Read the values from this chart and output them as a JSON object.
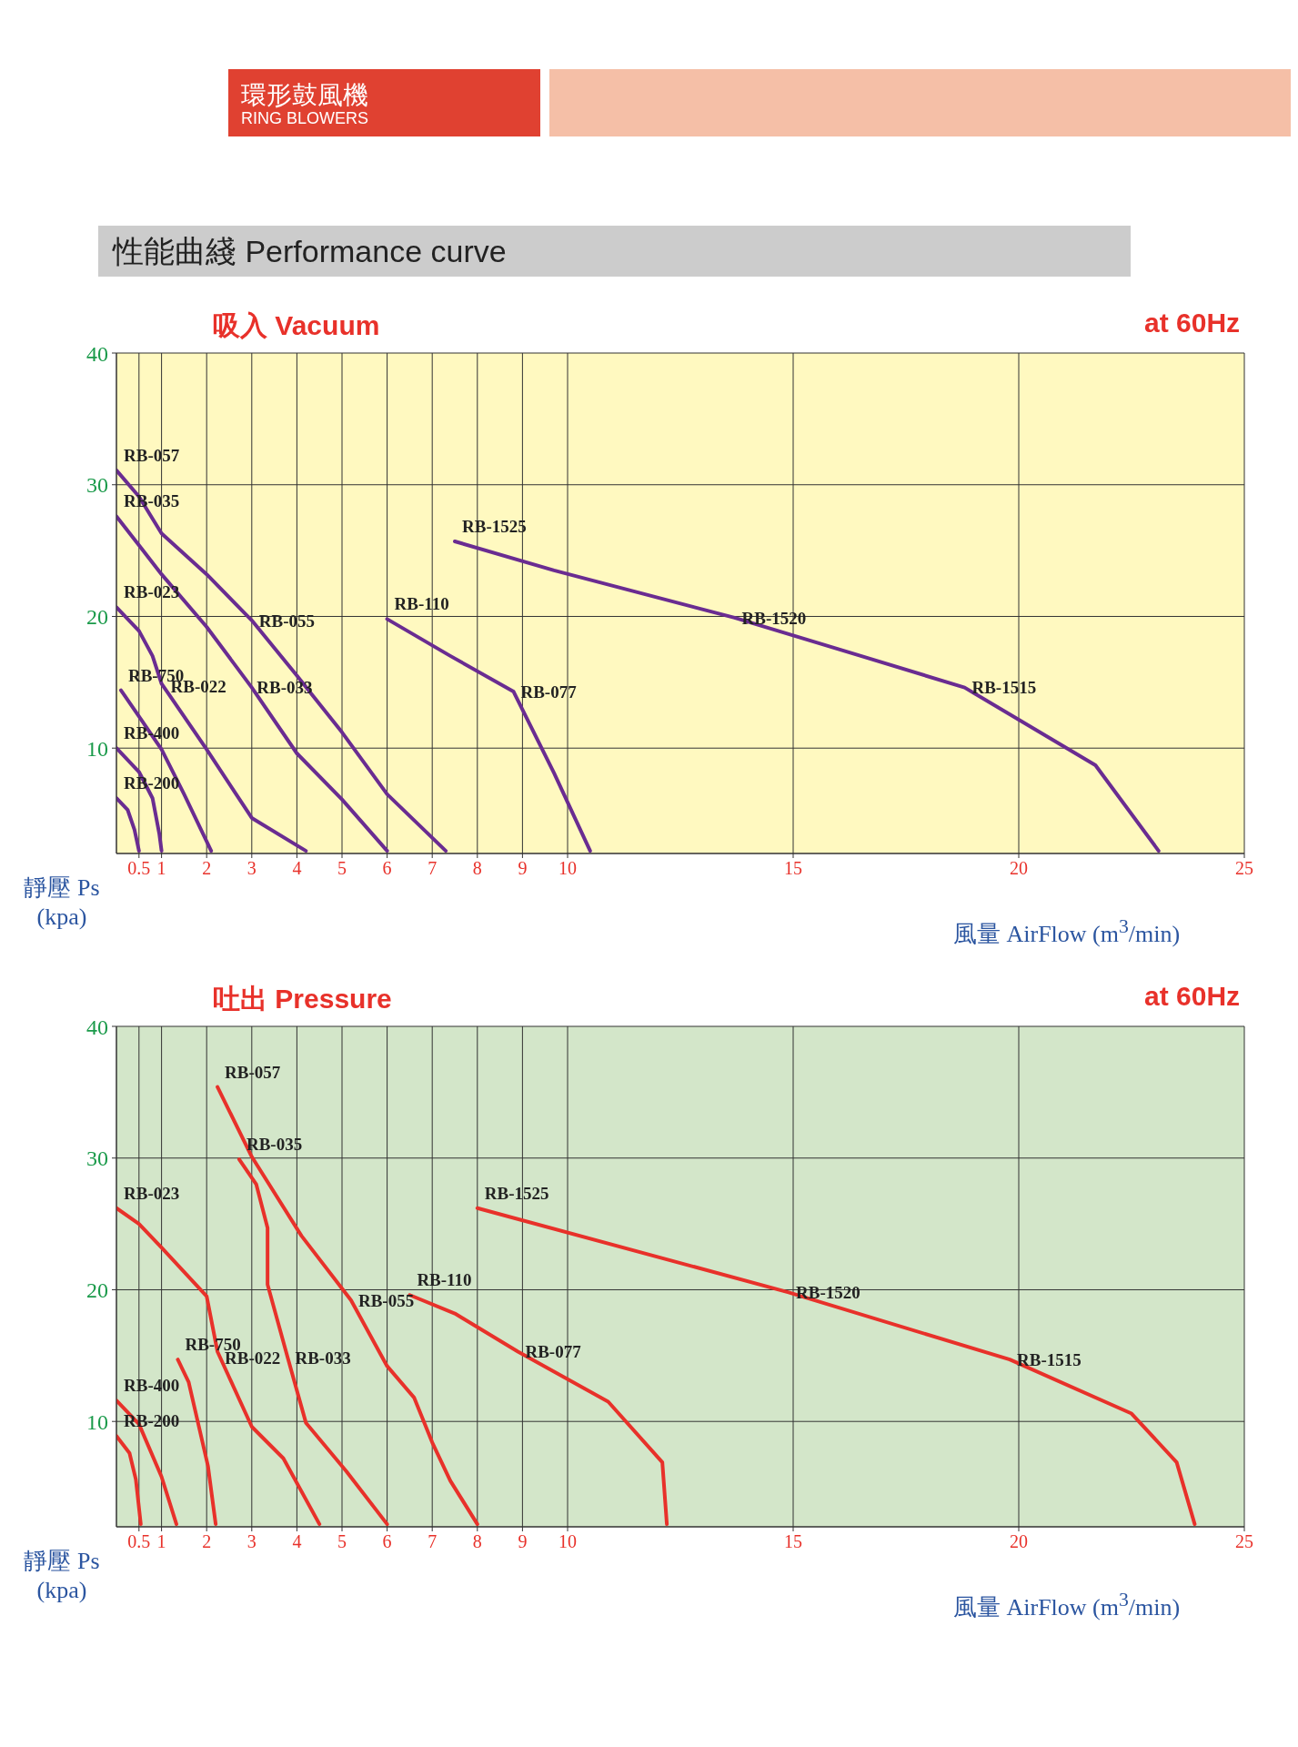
{
  "chart_data": [
    {
      "type": "line",
      "title": "吸入 Vacuum",
      "xlabel": "風量 AirFlow (m$^{3}$/min)",
      "ylabel": "靜壓 Ps (kpa)",
      "xlim": [
        0,
        25
      ],
      "xticks": [
        0.5,
        1,
        2,
        3,
        4,
        5,
        6,
        7,
        8,
        9,
        10,
        15,
        20,
        25
      ],
      "ylim": [
        2,
        40
      ],
      "yticks": [
        10,
        20,
        30,
        40
      ],
      "grid": true,
      "annotations": [
        "環形鼓風機",
        "RING BLOWERS",
        "性能曲綫 Performance curve",
        "at 60Hz",
        {
          "text": "RB-055",
          "x": 3,
          "y": 19.7
        },
        {
          "text": "RB-033",
          "x": 2.95,
          "y": 14.6
        },
        {
          "text": "RB-022",
          "x": 1.04,
          "y": 14.7
        },
        {
          "text": "RB-077",
          "x": 8.8,
          "y": 14.3
        },
        {
          "text": "RB-1520",
          "x": 13.7,
          "y": 19.9
        },
        {
          "text": "RB-1515",
          "x": 18.8,
          "y": 14.6
        }
      ],
      "series": [
        {
          "name": "RB-057",
          "color": "#6a2c91",
          "x": [
            0,
            0.5,
            1,
            2,
            3,
            4,
            5,
            6,
            7.3
          ],
          "values": [
            31.1,
            29.1,
            26.3,
            23.2,
            19.7,
            15.5,
            11.2,
            6.5,
            2.2
          ]
        },
        {
          "name": "RB-035",
          "color": "#6a2c91",
          "x": [
            0,
            0.5,
            1,
            2,
            3,
            4,
            5,
            6
          ],
          "values": [
            27.6,
            25.4,
            23.2,
            19.2,
            14.6,
            9.6,
            6.1,
            2.2
          ]
        },
        {
          "name": "RB-023",
          "color": "#6a2c91",
          "x": [
            0,
            0.5,
            0.8,
            1,
            2,
            3,
            4.2
          ],
          "values": [
            20.7,
            18.9,
            17,
            14.9,
            9.9,
            4.7,
            2.2
          ]
        },
        {
          "name": "RB-750",
          "color": "#6a2c91",
          "x": [
            0.1,
            0.5,
            1,
            1.5,
            2.1
          ],
          "values": [
            14.4,
            12.4,
            9.9,
            6.5,
            2.2
          ]
        },
        {
          "name": "RB-400",
          "color": "#6a2c91",
          "x": [
            0,
            0.5,
            0.8,
            0.95,
            1
          ],
          "values": [
            10,
            8.2,
            6.2,
            3.5,
            2.2
          ]
        },
        {
          "name": "RB-200",
          "color": "#6a2c91",
          "x": [
            0,
            0.25,
            0.4,
            0.5
          ],
          "values": [
            6.2,
            5.3,
            3.8,
            2.2
          ]
        },
        {
          "name": "RB-110",
          "color": "#6a2c91",
          "x": [
            6,
            7.4,
            8.8,
            9.7,
            10.5
          ],
          "values": [
            19.8,
            17,
            14.3,
            8.1,
            2.2
          ]
        },
        {
          "name": "RB-1525",
          "color": "#6a2c91",
          "x": [
            7.5,
            9.7,
            13.7,
            16.5,
            18.8,
            21.7,
            23.1
          ],
          "values": [
            25.7,
            23.5,
            19.9,
            17,
            14.6,
            8.7,
            2.2
          ]
        }
      ]
    },
    {
      "type": "line",
      "title": "吐出 Pressure",
      "xlabel": "風量 AirFlow (m$^{3}$/min)",
      "ylabel": "靜壓 Ps (kpa)",
      "xlim": [
        0,
        25
      ],
      "xticks": [
        0.5,
        1,
        2,
        3,
        4,
        5,
        6,
        7,
        8,
        9,
        10,
        15,
        20,
        25
      ],
      "ylim": [
        2,
        40
      ],
      "yticks": [
        10,
        20,
        30,
        40
      ],
      "grid": true,
      "annotations": [
        "at 60Hz",
        {
          "text": "RB-055",
          "x": 5.2,
          "y": 19.2
        },
        {
          "text": "RB-022",
          "x": 2.24,
          "y": 14.8
        },
        {
          "text": "RB-033",
          "x": 3.8,
          "y": 14.8
        },
        {
          "text": "RB-077",
          "x": 8.9,
          "y": 15.3
        },
        {
          "text": "RB-1520",
          "x": 14.9,
          "y": 19.8
        },
        {
          "text": "RB-1515",
          "x": 19.8,
          "y": 14.7
        }
      ],
      "series": [
        {
          "name": "RB-057",
          "color": "#e8312a",
          "x": [
            2.24,
            3,
            4.1,
            5.2,
            6,
            6.6,
            7,
            7.4,
            8
          ],
          "values": [
            35.4,
            30.1,
            24.1,
            19.2,
            14.2,
            11.8,
            8.4,
            5.5,
            2.2
          ]
        },
        {
          "name": "RB-035",
          "color": "#e8312a",
          "x": [
            2.72,
            3.1,
            3.35,
            3.35,
            3.8,
            4.2,
            5.1,
            6
          ],
          "values": [
            29.9,
            28,
            24.7,
            20.4,
            14.8,
            9.9,
            6.2,
            2.2
          ]
        },
        {
          "name": "RB-023",
          "color": "#e8312a",
          "x": [
            0,
            0.5,
            1,
            2,
            2.24,
            3,
            3.7,
            4.5
          ],
          "values": [
            26.2,
            25,
            23.2,
            19.5,
            15.3,
            9.6,
            7.2,
            2.2
          ]
        },
        {
          "name": "RB-750",
          "color": "#e8312a",
          "x": [
            1.36,
            1.6,
            2.03,
            2.2
          ],
          "values": [
            14.7,
            13,
            6.6,
            2.2
          ]
        },
        {
          "name": "RB-400",
          "color": "#e8312a",
          "x": [
            0,
            0.5,
            1,
            1.33
          ],
          "values": [
            11.6,
            9.8,
            5.8,
            2.2
          ]
        },
        {
          "name": "RB-200",
          "color": "#e8312a",
          "x": [
            0,
            0.29,
            0.43,
            0.54
          ],
          "values": [
            8.9,
            7.6,
            5.6,
            2.2
          ]
        },
        {
          "name": "RB-110",
          "color": "#e8312a",
          "x": [
            6.5,
            7.5,
            8.9,
            10.9,
            12.1,
            12.2
          ],
          "values": [
            19.6,
            18.2,
            15.3,
            11.5,
            6.9,
            2.2
          ]
        },
        {
          "name": "RB-1525",
          "color": "#e8312a",
          "x": [
            8,
            14.9,
            19.8,
            22.5,
            23.5,
            23.9
          ],
          "values": [
            26.2,
            19.8,
            14.7,
            10.6,
            6.9,
            2.2
          ]
        }
      ]
    }
  ]
}
